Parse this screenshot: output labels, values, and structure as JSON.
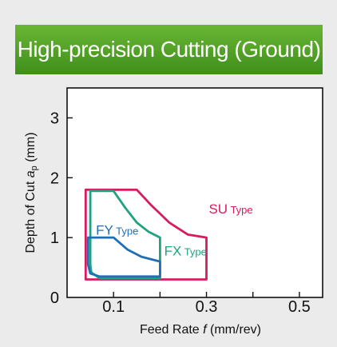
{
  "header": {
    "title": "High-precision Cutting (Ground)"
  },
  "chart_data": {
    "type": "area",
    "title": "High-precision Cutting (Ground)",
    "xlabel": {
      "prefix": "Feed Rate ",
      "symbol": "f",
      "suffix": " (mm/rev)"
    },
    "ylabel": {
      "prefix": "Depth of Cut ",
      "symbol": "a",
      "subscript": "p",
      "suffix": " (mm)"
    },
    "xlim": [
      0,
      0.55
    ],
    "ylim": [
      0,
      3.5
    ],
    "xticks": [
      {
        "value": 0.1,
        "label": "0.1"
      },
      {
        "value": 0.3,
        "label": "0.3"
      },
      {
        "value": 0.5,
        "label": "0.5"
      }
    ],
    "xminor": [
      0.2,
      0.4
    ],
    "yticks": [
      {
        "value": 0,
        "label": "0"
      },
      {
        "value": 1,
        "label": "1"
      },
      {
        "value": 2,
        "label": "2"
      },
      {
        "value": 3,
        "label": "3"
      }
    ],
    "grid": false,
    "series": [
      {
        "name": "SU",
        "label": {
          "main": "SU",
          "suffix": " Type",
          "x": 0.305,
          "y": 1.4
        },
        "color": "#d81b60",
        "points": [
          [
            0.04,
            1.8
          ],
          [
            0.15,
            1.8
          ],
          [
            0.18,
            1.55
          ],
          [
            0.22,
            1.25
          ],
          [
            0.26,
            1.05
          ],
          [
            0.3,
            1.0
          ],
          [
            0.3,
            0.3
          ],
          [
            0.04,
            0.3
          ],
          [
            0.04,
            1.8
          ]
        ]
      },
      {
        "name": "FX",
        "label": {
          "main": "FX",
          "suffix": " Type",
          "x": 0.209,
          "y": 0.7
        },
        "color": "#1fa37f",
        "points": [
          [
            0.05,
            1.78
          ],
          [
            0.1,
            1.78
          ],
          [
            0.125,
            1.5
          ],
          [
            0.15,
            1.25
          ],
          [
            0.175,
            1.1
          ],
          [
            0.2,
            1.0
          ],
          [
            0.2,
            0.32
          ],
          [
            0.07,
            0.32
          ],
          [
            0.052,
            0.42
          ],
          [
            0.05,
            0.55
          ],
          [
            0.05,
            1.78
          ]
        ]
      },
      {
        "name": "FY",
        "label": {
          "main": "FY",
          "suffix": " Type",
          "x": 0.062,
          "y": 1.05
        },
        "color": "#1f6fb5",
        "points": [
          [
            0.045,
            1.0
          ],
          [
            0.1,
            1.0
          ],
          [
            0.13,
            0.8
          ],
          [
            0.16,
            0.68
          ],
          [
            0.2,
            0.6
          ],
          [
            0.2,
            0.35
          ],
          [
            0.07,
            0.35
          ],
          [
            0.05,
            0.4
          ],
          [
            0.045,
            0.55
          ],
          [
            0.045,
            1.0
          ]
        ]
      }
    ]
  }
}
